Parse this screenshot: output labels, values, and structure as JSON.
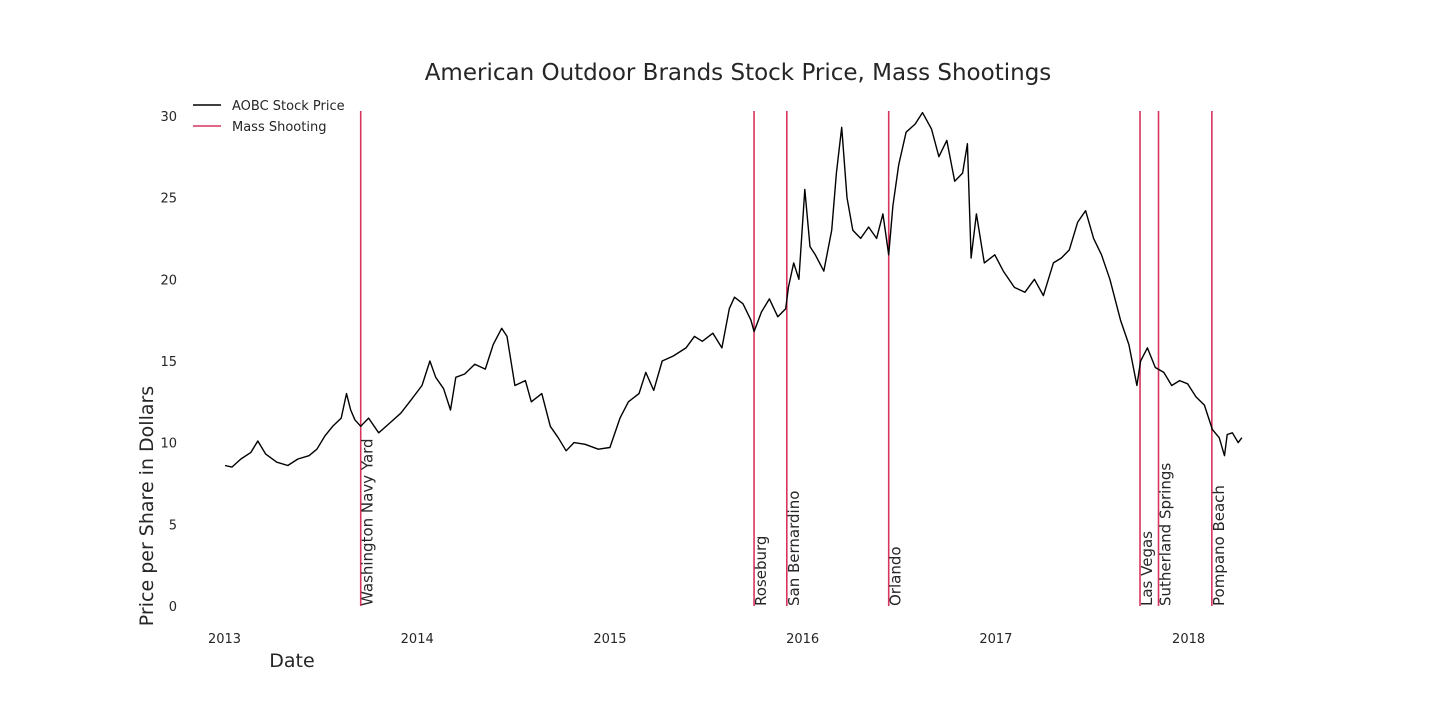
{
  "chart_data": {
    "type": "line",
    "title": "American Outdoor Brands Stock Price, Mass Shootings",
    "xlabel": "Date",
    "ylabel": "Price per Share in Dollars",
    "xlim": [
      "2012-10-22",
      "2018-05-20"
    ],
    "ylim": [
      0,
      30.3
    ],
    "x_ticks": [
      "2013",
      "2014",
      "2015",
      "2016",
      "2017",
      "2018"
    ],
    "y_ticks": [
      "0",
      "5",
      "10",
      "15",
      "20",
      "25",
      "30"
    ],
    "grid": false,
    "legend": {
      "placement": "top-left",
      "entries": [
        {
          "label": "AOBC Stock Price",
          "color": "#000000"
        },
        {
          "label": "Mass Shooting",
          "color": "#d6355d"
        }
      ]
    },
    "series": [
      {
        "name": "AOBC Stock Price",
        "color": "#000000",
        "points": [
          [
            "2013-01-02",
            8.6
          ],
          [
            "2013-01-15",
            8.5
          ],
          [
            "2013-02-01",
            9.0
          ],
          [
            "2013-02-20",
            9.4
          ],
          [
            "2013-03-05",
            10.1
          ],
          [
            "2013-03-20",
            9.3
          ],
          [
            "2013-04-10",
            8.8
          ],
          [
            "2013-05-01",
            8.6
          ],
          [
            "2013-05-20",
            9.0
          ],
          [
            "2013-06-10",
            9.2
          ],
          [
            "2013-06-25",
            9.6
          ],
          [
            "2013-07-10",
            10.4
          ],
          [
            "2013-07-25",
            11.0
          ],
          [
            "2013-08-10",
            11.5
          ],
          [
            "2013-08-20",
            13.0
          ],
          [
            "2013-08-28",
            12.0
          ],
          [
            "2013-09-05",
            11.4
          ],
          [
            "2013-09-16",
            11.0
          ],
          [
            "2013-10-01",
            11.5
          ],
          [
            "2013-10-20",
            10.6
          ],
          [
            "2013-11-10",
            11.2
          ],
          [
            "2013-12-01",
            11.8
          ],
          [
            "2013-12-20",
            12.6
          ],
          [
            "2014-01-10",
            13.5
          ],
          [
            "2014-01-25",
            15.0
          ],
          [
            "2014-02-05",
            14.0
          ],
          [
            "2014-02-20",
            13.3
          ],
          [
            "2014-03-05",
            12.0
          ],
          [
            "2014-03-15",
            14.0
          ],
          [
            "2014-04-01",
            14.2
          ],
          [
            "2014-04-20",
            14.8
          ],
          [
            "2014-05-10",
            14.5
          ],
          [
            "2014-05-25",
            16.0
          ],
          [
            "2014-06-10",
            17.0
          ],
          [
            "2014-06-20",
            16.5
          ],
          [
            "2014-07-05",
            13.5
          ],
          [
            "2014-07-25",
            13.8
          ],
          [
            "2014-08-05",
            12.5
          ],
          [
            "2014-08-25",
            13.0
          ],
          [
            "2014-09-10",
            11.0
          ],
          [
            "2014-09-25",
            10.3
          ],
          [
            "2014-10-10",
            9.5
          ],
          [
            "2014-10-25",
            10.0
          ],
          [
            "2014-11-15",
            9.9
          ],
          [
            "2014-12-10",
            9.6
          ],
          [
            "2015-01-01",
            9.7
          ],
          [
            "2015-01-20",
            11.5
          ],
          [
            "2015-02-05",
            12.5
          ],
          [
            "2015-02-25",
            13.0
          ],
          [
            "2015-03-10",
            14.3
          ],
          [
            "2015-03-25",
            13.2
          ],
          [
            "2015-04-10",
            15.0
          ],
          [
            "2015-05-01",
            15.3
          ],
          [
            "2015-05-25",
            15.8
          ],
          [
            "2015-06-10",
            16.5
          ],
          [
            "2015-06-25",
            16.2
          ],
          [
            "2015-07-15",
            16.7
          ],
          [
            "2015-08-01",
            15.8
          ],
          [
            "2015-08-15",
            18.2
          ],
          [
            "2015-08-25",
            18.9
          ],
          [
            "2015-09-10",
            18.5
          ],
          [
            "2015-09-25",
            17.5
          ],
          [
            "2015-10-01",
            16.8
          ],
          [
            "2015-10-15",
            18.0
          ],
          [
            "2015-10-30",
            18.8
          ],
          [
            "2015-11-15",
            17.7
          ],
          [
            "2015-11-30",
            18.2
          ],
          [
            "2015-12-05",
            19.5
          ],
          [
            "2015-12-15",
            21.0
          ],
          [
            "2015-12-25",
            20.0
          ],
          [
            "2016-01-05",
            25.5
          ],
          [
            "2016-01-15",
            22.0
          ],
          [
            "2016-01-25",
            21.5
          ],
          [
            "2016-02-10",
            20.5
          ],
          [
            "2016-02-25",
            23.0
          ],
          [
            "2016-03-05",
            26.5
          ],
          [
            "2016-03-15",
            29.3
          ],
          [
            "2016-03-25",
            25.0
          ],
          [
            "2016-04-05",
            23.0
          ],
          [
            "2016-04-20",
            22.5
          ],
          [
            "2016-05-05",
            23.2
          ],
          [
            "2016-05-20",
            22.5
          ],
          [
            "2016-06-01",
            24.0
          ],
          [
            "2016-06-12",
            21.5
          ],
          [
            "2016-06-20",
            24.5
          ],
          [
            "2016-07-01",
            27.0
          ],
          [
            "2016-07-15",
            29.0
          ],
          [
            "2016-08-01",
            29.5
          ],
          [
            "2016-08-15",
            30.2
          ],
          [
            "2016-09-01",
            29.2
          ],
          [
            "2016-09-15",
            27.5
          ],
          [
            "2016-09-30",
            28.5
          ],
          [
            "2016-10-15",
            26.0
          ],
          [
            "2016-10-30",
            26.5
          ],
          [
            "2016-11-08",
            28.3
          ],
          [
            "2016-11-15",
            21.3
          ],
          [
            "2016-11-25",
            24.0
          ],
          [
            "2016-12-10",
            21.0
          ],
          [
            "2016-12-30",
            21.5
          ],
          [
            "2017-01-15",
            20.5
          ],
          [
            "2017-02-05",
            19.5
          ],
          [
            "2017-02-25",
            19.2
          ],
          [
            "2017-03-15",
            20.0
          ],
          [
            "2017-04-01",
            19.0
          ],
          [
            "2017-04-20",
            21.0
          ],
          [
            "2017-05-05",
            21.3
          ],
          [
            "2017-05-20",
            21.8
          ],
          [
            "2017-06-05",
            23.5
          ],
          [
            "2017-06-20",
            24.2
          ],
          [
            "2017-07-05",
            22.5
          ],
          [
            "2017-07-20",
            21.5
          ],
          [
            "2017-08-05",
            20.0
          ],
          [
            "2017-08-25",
            17.5
          ],
          [
            "2017-09-10",
            16.0
          ],
          [
            "2017-09-25",
            13.5
          ],
          [
            "2017-10-02",
            15.0
          ],
          [
            "2017-10-15",
            15.8
          ],
          [
            "2017-10-30",
            14.6
          ],
          [
            "2017-11-15",
            14.3
          ],
          [
            "2017-11-30",
            13.5
          ],
          [
            "2017-12-15",
            13.8
          ],
          [
            "2017-12-30",
            13.6
          ],
          [
            "2018-01-15",
            12.8
          ],
          [
            "2018-01-31",
            12.3
          ],
          [
            "2018-02-15",
            10.8
          ],
          [
            "2018-02-28",
            10.3
          ],
          [
            "2018-03-10",
            9.2
          ],
          [
            "2018-03-15",
            10.5
          ],
          [
            "2018-03-25",
            10.6
          ],
          [
            "2018-04-05",
            10.0
          ],
          [
            "2018-04-12",
            10.3
          ]
        ]
      }
    ],
    "events": [
      {
        "name": "Washington Navy Yard",
        "date": "2013-09-16"
      },
      {
        "name": "Roseburg",
        "date": "2015-10-01"
      },
      {
        "name": "San Bernardino",
        "date": "2015-12-02"
      },
      {
        "name": "Orlando",
        "date": "2016-06-12"
      },
      {
        "name": "Las Vegas",
        "date": "2017-10-01"
      },
      {
        "name": "Sutherland Springs",
        "date": "2017-11-05"
      },
      {
        "name": "Pompano Beach",
        "date": "2018-02-14"
      }
    ]
  }
}
